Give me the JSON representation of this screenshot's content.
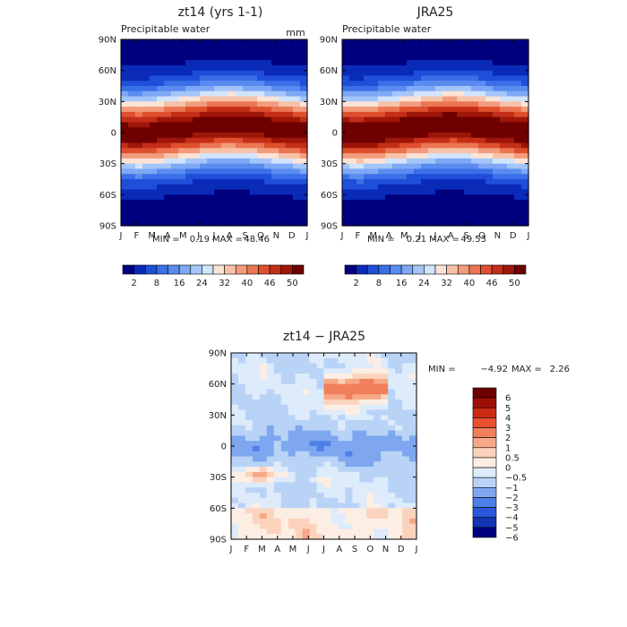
{
  "chart_data": [
    {
      "type": "heatmap",
      "id": "model",
      "title": "zt14 (yrs 1-1)",
      "subtitle": "Precipitable water",
      "units": "mm",
      "months": [
        "J",
        "F",
        "M",
        "A",
        "M",
        "J",
        "J",
        "A",
        "S",
        "O",
        "N",
        "D",
        "J"
      ],
      "lat_labels": [
        "90N",
        "60N",
        "30N",
        "0",
        "30S",
        "60S",
        "90S"
      ],
      "lat_range": [
        -90,
        90
      ],
      "min_label": "MIN =",
      "min_value": "0.19",
      "max_label": "MAX =",
      "max_value": "48.46",
      "colorbar_labels": [
        "2",
        "8",
        "16",
        "24",
        "32",
        "40",
        "46",
        "50"
      ],
      "itcz_lat_by_month": [
        0,
        -1,
        0,
        2,
        4,
        6,
        8,
        9,
        8,
        6,
        4,
        2,
        0
      ],
      "peak_value": 48.46
    },
    {
      "type": "heatmap",
      "id": "obs",
      "title": "JRA25",
      "subtitle": "Precipitable water",
      "months": [
        "J",
        "F",
        "M",
        "A",
        "M",
        "J",
        "J",
        "A",
        "S",
        "O",
        "N",
        "D",
        "J"
      ],
      "lat_labels": [
        "90N",
        "60N",
        "30N",
        "0",
        "30S",
        "60S",
        "90S"
      ],
      "lat_range": [
        -90,
        90
      ],
      "min_label": "MIN =",
      "min_value": "0.21",
      "max_label": "MAX =",
      "max_value": "49.53",
      "colorbar_labels": [
        "2",
        "8",
        "16",
        "24",
        "32",
        "40",
        "46",
        "50"
      ],
      "itcz_lat_by_month": [
        0,
        -1,
        0,
        2,
        4,
        6,
        8,
        9,
        8,
        6,
        4,
        2,
        0
      ],
      "peak_value": 49.53
    },
    {
      "type": "heatmap",
      "id": "diff",
      "title": "zt14 − JRA25",
      "months": [
        "J",
        "F",
        "M",
        "A",
        "M",
        "J",
        "J",
        "A",
        "S",
        "O",
        "N",
        "D",
        "J"
      ],
      "lat_labels": [
        "90N",
        "60N",
        "30N",
        "0",
        "30S",
        "60S",
        "90S"
      ],
      "lat_range": [
        -90,
        90
      ],
      "min_label": "MIN =",
      "min_value": "−4.92",
      "max_label": "MAX =",
      "max_value": "2.26",
      "colorbar_labels": [
        "6",
        "5",
        "4",
        "3",
        "2",
        "1",
        "0.5",
        "0",
        "−0.5",
        "−1",
        "−2",
        "−3",
        "−4",
        "−5",
        "−6"
      ]
    }
  ],
  "palettes": {
    "absolute": [
      "#00007f",
      "#0a2bb8",
      "#1f4fd8",
      "#3b6fe8",
      "#5a8cf0",
      "#7ea8f5",
      "#a4c5f9",
      "#d2e4fb",
      "#fbe3d6",
      "#f8c2a8",
      "#f29c7d",
      "#eb7552",
      "#de4f2e",
      "#c42e18",
      "#9e1608",
      "#6e0000"
    ],
    "difference": [
      "#6e0000",
      "#a00f06",
      "#cc2a14",
      "#e9502f",
      "#f27f5c",
      "#f7a886",
      "#fbd3bd",
      "#fdeee4",
      "#ddebfb",
      "#b9d3f7",
      "#7ea7f0",
      "#4f7fe8",
      "#2a57d8",
      "#1234b5",
      "#000080"
    ]
  }
}
